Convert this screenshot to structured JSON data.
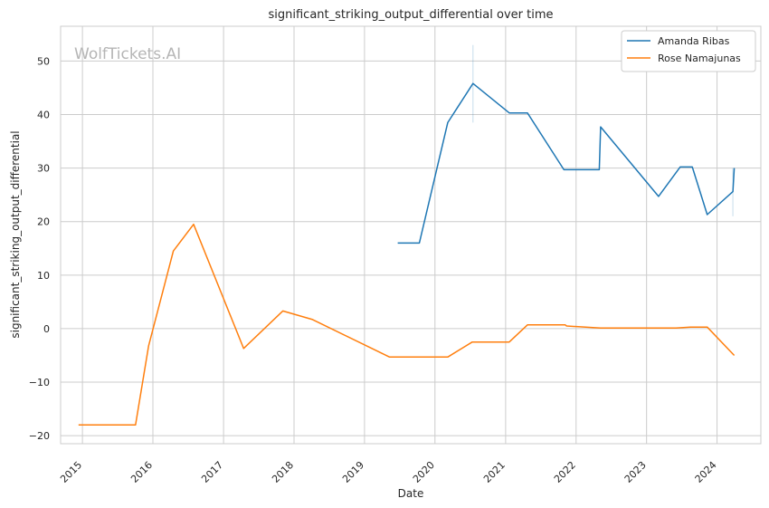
{
  "watermark": "WolfTickets.AI",
  "chart_data": {
    "type": "line",
    "title": "significant_striking_output_differential over time",
    "xlabel": "Date",
    "ylabel": "significant_striking_output_differential",
    "xlim": [
      "2014-09-10",
      "2024-08-15"
    ],
    "ylim": [
      -21.5,
      56.5
    ],
    "x_ticks": [
      "2015",
      "2016",
      "2017",
      "2018",
      "2019",
      "2020",
      "2021",
      "2022",
      "2023",
      "2024"
    ],
    "y_ticks": [
      -20,
      -10,
      0,
      10,
      20,
      30,
      40,
      50
    ],
    "grid": true,
    "legend_position": "top-right",
    "series": [
      {
        "name": "Amanda Ribas",
        "color": "#1f77b4",
        "points": [
          [
            "2019-06-22",
            16.0
          ],
          [
            "2019-10-12",
            16.0
          ],
          [
            "2020-03-07",
            38.5
          ],
          [
            "2020-07-16",
            45.8
          ],
          [
            "2021-01-20",
            40.3
          ],
          [
            "2021-04-24",
            40.3
          ],
          [
            "2021-10-30",
            29.7
          ],
          [
            "2022-05-01",
            29.7
          ],
          [
            "2022-05-08",
            37.7
          ],
          [
            "2023-03-04",
            24.7
          ],
          [
            "2023-06-24",
            30.2
          ],
          [
            "2023-08-26",
            30.2
          ],
          [
            "2023-11-11",
            21.3
          ],
          [
            "2024-03-23",
            25.6
          ],
          [
            "2024-03-30",
            30.0
          ]
        ],
        "error_bars": [
          {
            "x": "2020-07-16",
            "low": 38.5,
            "high": 53.0
          },
          {
            "x": "2024-03-23",
            "low": 21.0,
            "high": 30.0
          }
        ]
      },
      {
        "name": "Rose Namajunas",
        "color": "#ff7f0e",
        "points": [
          [
            "2014-12-12",
            -18.0
          ],
          [
            "2015-10-03",
            -18.0
          ],
          [
            "2015-12-10",
            -3.2
          ],
          [
            "2016-04-16",
            14.5
          ],
          [
            "2016-07-30",
            19.5
          ],
          [
            "2017-04-15",
            -3.7
          ],
          [
            "2017-11-04",
            3.3
          ],
          [
            "2018-04-07",
            1.7
          ],
          [
            "2019-05-11",
            -5.3
          ],
          [
            "2020-03-07",
            -5.3
          ],
          [
            "2020-07-12",
            -2.5
          ],
          [
            "2021-01-20",
            -2.5
          ],
          [
            "2021-04-24",
            0.7
          ],
          [
            "2021-11-06",
            0.7
          ],
          [
            "2021-11-13",
            0.5
          ],
          [
            "2022-05-07",
            0.1
          ],
          [
            "2023-06-03",
            0.1
          ],
          [
            "2023-08-19",
            0.3
          ],
          [
            "2023-11-11",
            0.3
          ],
          [
            "2024-03-30",
            -5.0
          ]
        ]
      }
    ]
  }
}
